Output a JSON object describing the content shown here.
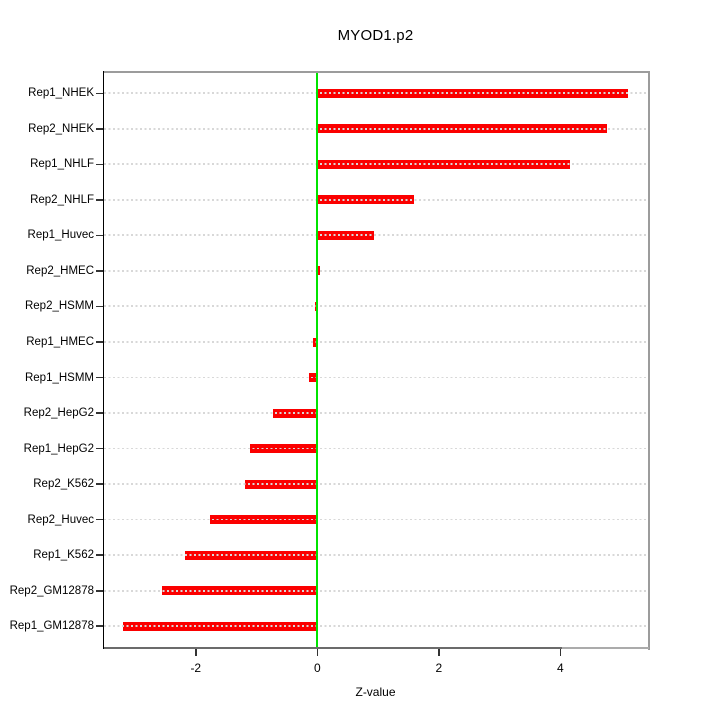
{
  "chart_data": {
    "type": "bar",
    "orientation": "horizontal",
    "title": "MYOD1.p2",
    "xlabel": "Z-value",
    "ylabel": "",
    "categories": [
      "Rep1_NHEK",
      "Rep2_NHEK",
      "Rep1_NHLF",
      "Rep2_NHLF",
      "Rep1_Huvec",
      "Rep2_HMEC",
      "Rep2_HSMM",
      "Rep1_HMEC",
      "Rep1_HSMM",
      "Rep2_HepG2",
      "Rep1_HepG2",
      "Rep2_K562",
      "Rep2_Huvec",
      "Rep1_K562",
      "Rep2_GM12878",
      "Rep1_GM12878"
    ],
    "values": [
      5.11,
      4.76,
      4.16,
      1.59,
      0.93,
      0.05,
      -0.04,
      -0.07,
      -0.14,
      -0.73,
      -1.11,
      -1.19,
      -1.77,
      -2.18,
      -2.56,
      -3.19
    ],
    "x_axis": {
      "ticks": [
        -2,
        0,
        2,
        4
      ],
      "tick_labels": [
        "-2",
        "0",
        "2",
        "4"
      ],
      "range": [
        -3.53,
        5.44
      ]
    },
    "grid": {
      "style": "dotted",
      "per_category": true
    },
    "zero_line_at": 0,
    "legend": null,
    "colors": {
      "bar": "#fb0000",
      "zero_line": "#00e400",
      "grid": "#d8d8d8",
      "box": "#9c9c9c",
      "axis_segment_dark": "#6b6b6b",
      "axis_segment_light": "#ababab",
      "y_axis": "#000000",
      "tick": "#333333",
      "text": "#000000"
    }
  }
}
